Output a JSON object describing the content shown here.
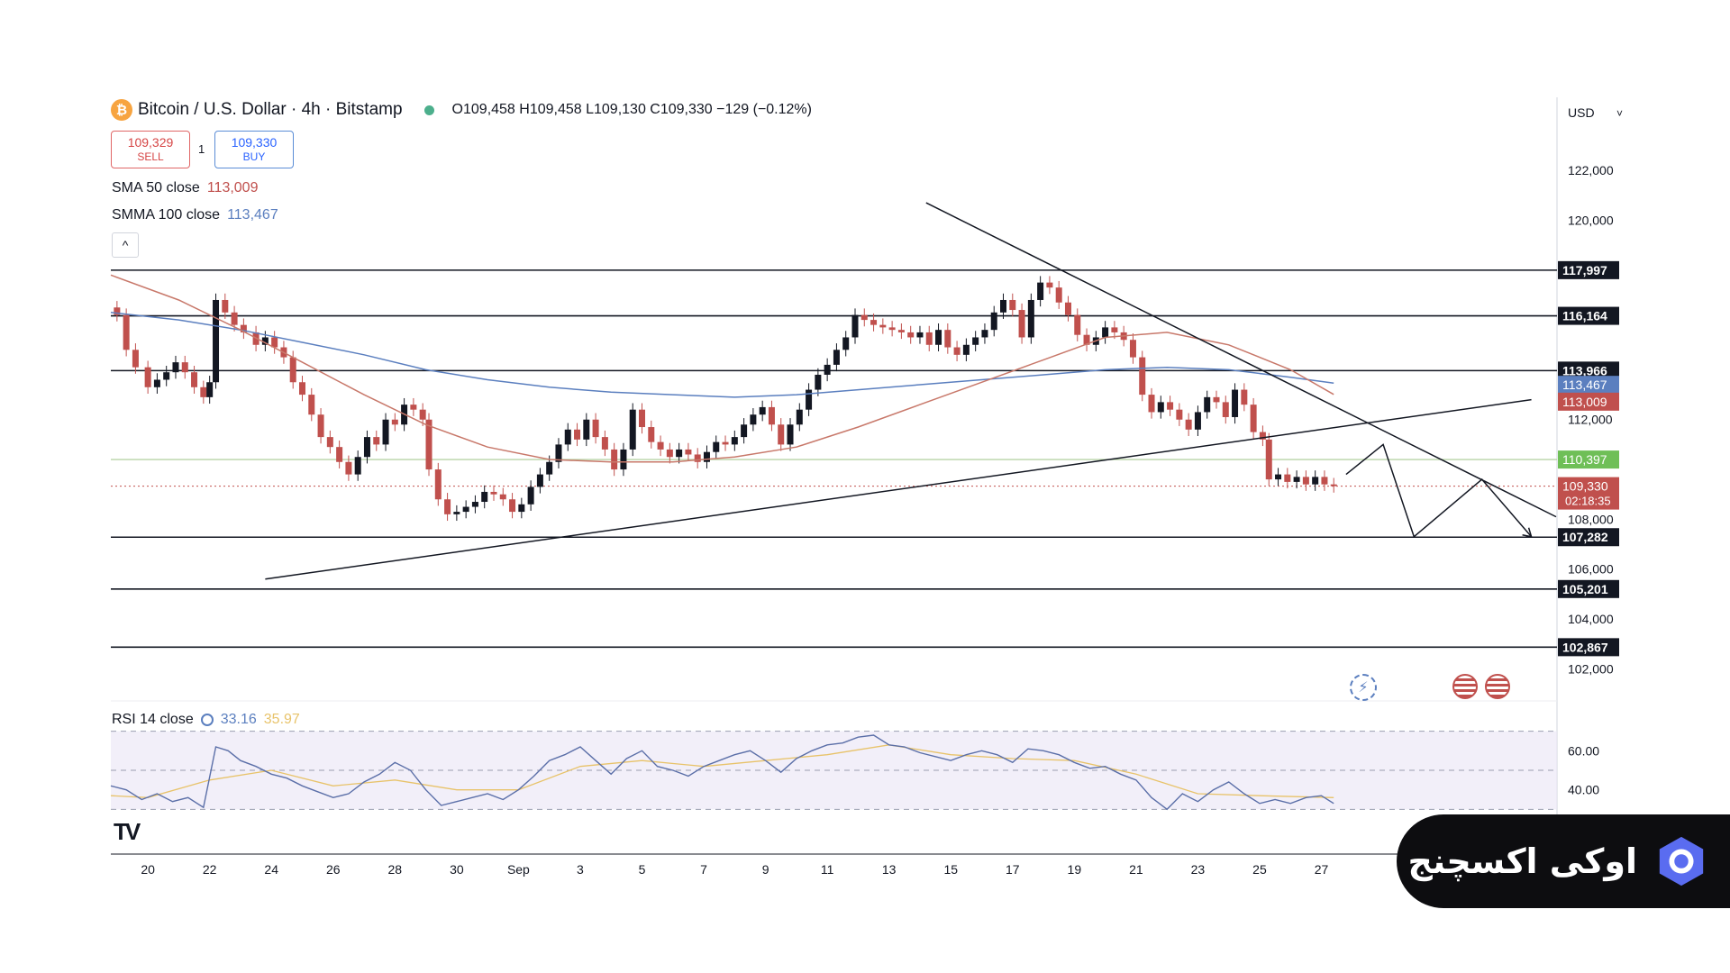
{
  "header": {
    "symbol": "Bitcoin / U.S. Dollar · 4h · Bitstamp",
    "ohlc": "O109,458 H109,458 L109,130 C109,330 −129 (−0.12%)",
    "coin_icon": "bitcoin-icon"
  },
  "trade": {
    "sell_price": "109,329",
    "sell_label": "SELL",
    "spread": "1",
    "buy_price": "109,330",
    "buy_label": "BUY"
  },
  "indicators": {
    "sma_label": "SMA 50 close",
    "sma_value": "113,009",
    "smma_label": "SMMA 100 close",
    "smma_value": "113,467",
    "rsi_label": "RSI 14 close",
    "rsi_value": "33.16",
    "rsi_ma_value": "35.97"
  },
  "brand": {
    "text": "اوکی اکسچنج"
  },
  "colors": {
    "sma": "#c8786a",
    "smma": "#5b7fbf",
    "up": "#131722",
    "down": "#c0504d",
    "rsi": "#5b6fa8",
    "rsi_ma": "#e8c36a"
  },
  "chart_data": {
    "type": "candlestick",
    "currency": "USD",
    "y_ticks": [
      122000,
      120000,
      112000,
      108000,
      106000,
      104000,
      102000
    ],
    "y_tick_labels": [
      "122,000",
      "120,000",
      "112,000",
      "108,000",
      "106,000",
      "104,000",
      "102,000"
    ],
    "ylim": [
      101000,
      124500
    ],
    "x_ticks": [
      {
        "day": 20,
        "label": "20"
      },
      {
        "day": 22,
        "label": "22"
      },
      {
        "day": 24,
        "label": "24"
      },
      {
        "day": 26,
        "label": "26"
      },
      {
        "day": 28,
        "label": "28"
      },
      {
        "day": 30,
        "label": "30"
      },
      {
        "day": 32,
        "label": "Sep"
      },
      {
        "day": 34,
        "label": "3"
      },
      {
        "day": 36,
        "label": "5"
      },
      {
        "day": 38,
        "label": "7"
      },
      {
        "day": 40,
        "label": "9"
      },
      {
        "day": 42,
        "label": "11"
      },
      {
        "day": 44,
        "label": "13"
      },
      {
        "day": 46,
        "label": "15"
      },
      {
        "day": 48,
        "label": "17"
      },
      {
        "day": 50,
        "label": "19"
      },
      {
        "day": 52,
        "label": "21"
      },
      {
        "day": 54,
        "label": "23"
      },
      {
        "day": 56,
        "label": "25"
      },
      {
        "day": 58,
        "label": "27"
      }
    ],
    "x_range": [
      18.8,
      65.6
    ],
    "horizontal_levels": [
      {
        "value": 117997,
        "label": "117,997"
      },
      {
        "value": 116164,
        "label": "116,164"
      },
      {
        "value": 113966,
        "label": "113,966"
      },
      {
        "value": 107282,
        "label": "107,282"
      },
      {
        "value": 105201,
        "label": "105,201"
      },
      {
        "value": 102867,
        "label": "102,867"
      }
    ],
    "green_level": {
      "value": 110397,
      "label": "110,397"
    },
    "last_price": {
      "value": 109330,
      "label": "109,330",
      "countdown": "02:18:35"
    },
    "sma_badge": {
      "value": 113009,
      "label": "113,009"
    },
    "smma_badge": {
      "value": 113467,
      "label": "113,467"
    },
    "closes": [
      [
        18.8,
        116500
      ],
      [
        19.0,
        116200
      ],
      [
        19.3,
        114800
      ],
      [
        19.6,
        114100
      ],
      [
        20.0,
        113300
      ],
      [
        20.3,
        113600
      ],
      [
        20.6,
        113900
      ],
      [
        20.9,
        114300
      ],
      [
        21.2,
        113900
      ],
      [
        21.5,
        113300
      ],
      [
        21.8,
        112900
      ],
      [
        22.0,
        113500
      ],
      [
        22.2,
        116800
      ],
      [
        22.5,
        116300
      ],
      [
        22.8,
        115800
      ],
      [
        23.1,
        115500
      ],
      [
        23.5,
        115000
      ],
      [
        23.8,
        115300
      ],
      [
        24.1,
        114900
      ],
      [
        24.4,
        114500
      ],
      [
        24.7,
        113500
      ],
      [
        25.0,
        113000
      ],
      [
        25.3,
        112200
      ],
      [
        25.6,
        111300
      ],
      [
        25.9,
        110900
      ],
      [
        26.2,
        110300
      ],
      [
        26.5,
        109800
      ],
      [
        26.8,
        110500
      ],
      [
        27.1,
        111300
      ],
      [
        27.4,
        111000
      ],
      [
        27.7,
        112000
      ],
      [
        28.0,
        111800
      ],
      [
        28.3,
        112600
      ],
      [
        28.6,
        112400
      ],
      [
        28.9,
        112000
      ],
      [
        29.1,
        110000
      ],
      [
        29.4,
        108800
      ],
      [
        29.7,
        108200
      ],
      [
        30.0,
        108300
      ],
      [
        30.3,
        108500
      ],
      [
        30.6,
        108700
      ],
      [
        30.9,
        109100
      ],
      [
        31.2,
        109000
      ],
      [
        31.5,
        108800
      ],
      [
        31.8,
        108300
      ],
      [
        32.1,
        108600
      ],
      [
        32.4,
        109300
      ],
      [
        32.7,
        109800
      ],
      [
        33.0,
        110300
      ],
      [
        33.3,
        111000
      ],
      [
        33.6,
        111600
      ],
      [
        33.9,
        111200
      ],
      [
        34.2,
        112000
      ],
      [
        34.5,
        111300
      ],
      [
        34.8,
        110800
      ],
      [
        35.1,
        110000
      ],
      [
        35.4,
        110800
      ],
      [
        35.7,
        112400
      ],
      [
        36.0,
        111700
      ],
      [
        36.3,
        111100
      ],
      [
        36.6,
        110800
      ],
      [
        36.9,
        110500
      ],
      [
        37.2,
        110800
      ],
      [
        37.5,
        110600
      ],
      [
        37.8,
        110300
      ],
      [
        38.1,
        110700
      ],
      [
        38.4,
        111100
      ],
      [
        38.7,
        111000
      ],
      [
        39.0,
        111300
      ],
      [
        39.3,
        111800
      ],
      [
        39.6,
        112200
      ],
      [
        39.9,
        112500
      ],
      [
        40.2,
        111800
      ],
      [
        40.5,
        111000
      ],
      [
        40.8,
        111800
      ],
      [
        41.1,
        112400
      ],
      [
        41.4,
        113200
      ],
      [
        41.7,
        113800
      ],
      [
        42.0,
        114200
      ],
      [
        42.3,
        114800
      ],
      [
        42.6,
        115300
      ],
      [
        42.9,
        116200
      ],
      [
        43.2,
        116000
      ],
      [
        43.5,
        115800
      ],
      [
        43.8,
        115700
      ],
      [
        44.1,
        115600
      ],
      [
        44.4,
        115500
      ],
      [
        44.7,
        115300
      ],
      [
        45.0,
        115500
      ],
      [
        45.3,
        115000
      ],
      [
        45.6,
        115600
      ],
      [
        45.9,
        114900
      ],
      [
        46.2,
        114600
      ],
      [
        46.5,
        115000
      ],
      [
        46.8,
        115300
      ],
      [
        47.1,
        115600
      ],
      [
        47.4,
        116300
      ],
      [
        47.7,
        116800
      ],
      [
        48.0,
        116400
      ],
      [
        48.3,
        115300
      ],
      [
        48.6,
        116800
      ],
      [
        48.9,
        117500
      ],
      [
        49.2,
        117300
      ],
      [
        49.5,
        116700
      ],
      [
        49.8,
        116200
      ],
      [
        50.1,
        115400
      ],
      [
        50.4,
        115000
      ],
      [
        50.7,
        115300
      ],
      [
        51.0,
        115700
      ],
      [
        51.3,
        115500
      ],
      [
        51.6,
        115200
      ],
      [
        51.9,
        114500
      ],
      [
        52.2,
        113000
      ],
      [
        52.5,
        112300
      ],
      [
        52.8,
        112700
      ],
      [
        53.1,
        112400
      ],
      [
        53.4,
        112000
      ],
      [
        53.7,
        111600
      ],
      [
        54.0,
        112300
      ],
      [
        54.3,
        112900
      ],
      [
        54.6,
        112700
      ],
      [
        54.9,
        112100
      ],
      [
        55.2,
        113200
      ],
      [
        55.5,
        112600
      ],
      [
        55.8,
        111500
      ],
      [
        56.1,
        111200
      ],
      [
        56.3,
        109600
      ],
      [
        56.6,
        109800
      ],
      [
        56.9,
        109500
      ],
      [
        57.2,
        109700
      ],
      [
        57.5,
        109400
      ],
      [
        57.8,
        109700
      ],
      [
        58.1,
        109400
      ],
      [
        58.4,
        109330
      ]
    ],
    "sma_50": [
      [
        18.8,
        117800
      ],
      [
        21.0,
        116800
      ],
      [
        23.0,
        115600
      ],
      [
        25.0,
        114300
      ],
      [
        27.0,
        113000
      ],
      [
        29.0,
        111800
      ],
      [
        31.0,
        110900
      ],
      [
        33.0,
        110400
      ],
      [
        35.0,
        110300
      ],
      [
        37.0,
        110300
      ],
      [
        39.0,
        110500
      ],
      [
        41.0,
        110900
      ],
      [
        43.0,
        111700
      ],
      [
        45.0,
        112600
      ],
      [
        47.0,
        113500
      ],
      [
        49.0,
        114400
      ],
      [
        51.0,
        115300
      ],
      [
        53.0,
        115500
      ],
      [
        55.0,
        115000
      ],
      [
        57.0,
        114000
      ],
      [
        58.4,
        113009
      ]
    ],
    "smma_100": [
      [
        18.8,
        116300
      ],
      [
        21.0,
        116000
      ],
      [
        23.0,
        115600
      ],
      [
        25.0,
        115100
      ],
      [
        27.0,
        114600
      ],
      [
        29.0,
        114000
      ],
      [
        31.0,
        113600
      ],
      [
        33.0,
        113300
      ],
      [
        35.0,
        113100
      ],
      [
        37.0,
        113000
      ],
      [
        39.0,
        112900
      ],
      [
        41.0,
        113000
      ],
      [
        43.0,
        113200
      ],
      [
        45.0,
        113400
      ],
      [
        47.0,
        113600
      ],
      [
        49.0,
        113800
      ],
      [
        51.0,
        114000
      ],
      [
        53.0,
        114100
      ],
      [
        55.0,
        114000
      ],
      [
        57.0,
        113700
      ],
      [
        58.4,
        113467
      ]
    ],
    "trendlines": [
      {
        "name": "rising-support",
        "points": [
          [
            23.8,
            105600
          ],
          [
            64.8,
            112800
          ]
        ]
      },
      {
        "name": "falling-resistance",
        "points": [
          [
            45.2,
            120700
          ],
          [
            65.6,
            108100
          ]
        ]
      }
    ],
    "forecast_path": [
      [
        58.8,
        109800
      ],
      [
        60.0,
        111000
      ],
      [
        61.0,
        107300
      ],
      [
        63.2,
        109600
      ],
      [
        64.8,
        107300
      ]
    ],
    "rsi": {
      "ylim": [
        20,
        80
      ],
      "ticks": [
        60,
        40
      ],
      "tick_labels": [
        "60.00",
        "40.00"
      ],
      "bands": [
        70,
        50,
        30
      ],
      "values": [
        [
          18.8,
          42
        ],
        [
          19.3,
          40
        ],
        [
          19.8,
          35
        ],
        [
          20.3,
          38
        ],
        [
          20.8,
          34
        ],
        [
          21.3,
          36
        ],
        [
          21.8,
          31
        ],
        [
          22.2,
          62
        ],
        [
          22.6,
          60
        ],
        [
          23.0,
          55
        ],
        [
          23.5,
          52
        ],
        [
          24.0,
          48
        ],
        [
          24.5,
          46
        ],
        [
          25.0,
          42
        ],
        [
          25.5,
          39
        ],
        [
          26.0,
          36
        ],
        [
          26.5,
          38
        ],
        [
          27.0,
          44
        ],
        [
          27.5,
          48
        ],
        [
          28.0,
          54
        ],
        [
          28.5,
          50
        ],
        [
          29.0,
          40
        ],
        [
          29.5,
          32
        ],
        [
          30.0,
          34
        ],
        [
          30.5,
          36
        ],
        [
          31.0,
          38
        ],
        [
          31.5,
          35
        ],
        [
          32.0,
          40
        ],
        [
          32.5,
          47
        ],
        [
          33.0,
          55
        ],
        [
          33.5,
          58
        ],
        [
          34.0,
          62
        ],
        [
          34.5,
          55
        ],
        [
          35.0,
          48
        ],
        [
          35.5,
          56
        ],
        [
          36.0,
          60
        ],
        [
          36.5,
          52
        ],
        [
          37.0,
          50
        ],
        [
          37.5,
          47
        ],
        [
          38.0,
          52
        ],
        [
          38.5,
          55
        ],
        [
          39.0,
          58
        ],
        [
          39.5,
          60
        ],
        [
          40.0,
          55
        ],
        [
          40.5,
          49
        ],
        [
          41.0,
          56
        ],
        [
          41.5,
          60
        ],
        [
          42.0,
          63
        ],
        [
          42.5,
          64
        ],
        [
          43.0,
          67
        ],
        [
          43.5,
          68
        ],
        [
          44.0,
          63
        ],
        [
          44.5,
          62
        ],
        [
          45.0,
          59
        ],
        [
          45.5,
          57
        ],
        [
          46.0,
          55
        ],
        [
          46.5,
          58
        ],
        [
          47.0,
          60
        ],
        [
          47.5,
          58
        ],
        [
          48.0,
          54
        ],
        [
          48.5,
          61
        ],
        [
          49.0,
          60
        ],
        [
          49.5,
          58
        ],
        [
          50.0,
          54
        ],
        [
          50.5,
          51
        ],
        [
          51.0,
          52
        ],
        [
          51.5,
          48
        ],
        [
          52.0,
          45
        ],
        [
          52.5,
          36
        ],
        [
          53.0,
          30
        ],
        [
          53.5,
          38
        ],
        [
          54.0,
          34
        ],
        [
          54.5,
          40
        ],
        [
          55.0,
          44
        ],
        [
          55.5,
          38
        ],
        [
          56.0,
          33
        ],
        [
          56.5,
          35
        ],
        [
          57.0,
          33
        ],
        [
          57.5,
          36
        ],
        [
          58.0,
          37
        ],
        [
          58.4,
          33
        ]
      ],
      "ma_values": [
        [
          18.8,
          37
        ],
        [
          20.0,
          36
        ],
        [
          22.0,
          45
        ],
        [
          24.0,
          50
        ],
        [
          26.0,
          42
        ],
        [
          28.0,
          45
        ],
        [
          30.0,
          40
        ],
        [
          32.0,
          40
        ],
        [
          34.0,
          52
        ],
        [
          36.0,
          55
        ],
        [
          38.0,
          52
        ],
        [
          40.0,
          55
        ],
        [
          42.0,
          58
        ],
        [
          44.0,
          63
        ],
        [
          46.0,
          58
        ],
        [
          48.0,
          56
        ],
        [
          50.0,
          55
        ],
        [
          52.0,
          48
        ],
        [
          54.0,
          38
        ],
        [
          56.0,
          37
        ],
        [
          58.4,
          36
        ]
      ]
    }
  }
}
